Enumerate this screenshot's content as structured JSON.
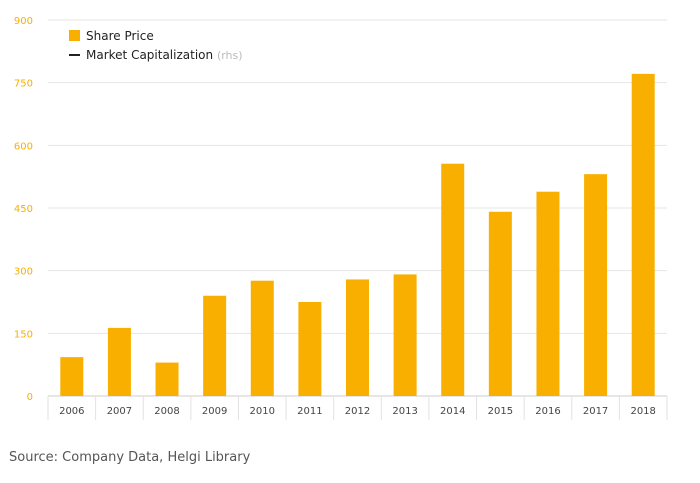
{
  "chart_data": {
    "type": "bar",
    "categories": [
      "2006",
      "2007",
      "2008",
      "2009",
      "2010",
      "2011",
      "2012",
      "2013",
      "2014",
      "2015",
      "2016",
      "2017",
      "2018"
    ],
    "series": [
      {
        "name": "Share Price",
        "values": [
          93,
          163,
          80,
          240,
          276,
          225,
          279,
          291,
          556,
          441,
          489,
          531,
          771
        ]
      }
    ],
    "ylim": [
      0,
      900
    ],
    "yticks": [
      0,
      150,
      300,
      450,
      600,
      750,
      900
    ],
    "grid": true,
    "legend": {
      "placement": "top-left",
      "items": [
        {
          "label": "Share Price",
          "marker": "square"
        },
        {
          "label": "Market Capitalization",
          "suffix": "(rhs)",
          "marker": "line"
        }
      ]
    }
  },
  "colors": {
    "bar": "#F9AF00",
    "tick_label": "#F9AF00",
    "grid": "#e6e6e6",
    "axis_text": "#444444",
    "legend_line": "#222222",
    "rhs_note": "#bbbbbb"
  },
  "source": "Source: Company Data, Helgi Library"
}
